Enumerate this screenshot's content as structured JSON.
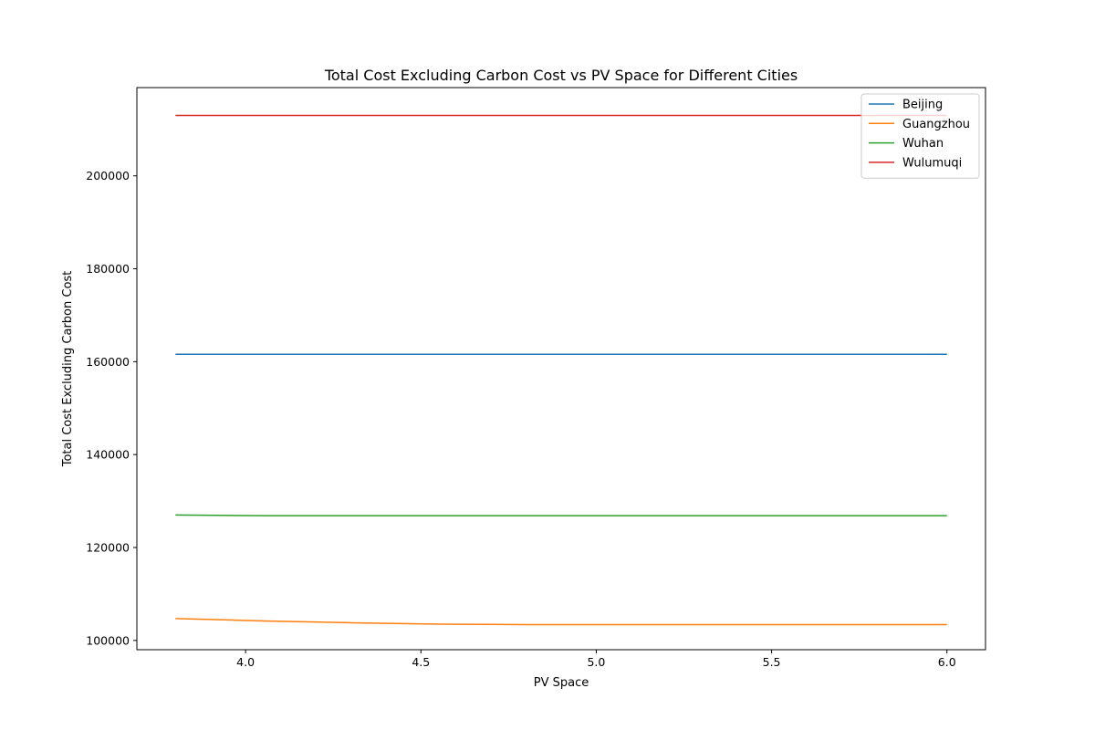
{
  "chart_data": {
    "type": "line",
    "title": "Total Cost Excluding Carbon Cost vs PV Space for Different Cities",
    "xlabel": "PV Space",
    "ylabel": "Total Cost Excluding Carbon Cost",
    "xlim": [
      3.69,
      6.11
    ],
    "ylim": [
      98000,
      219000
    ],
    "xticks": [
      4.0,
      4.5,
      5.0,
      5.5,
      6.0
    ],
    "xtick_labels": [
      "4.0",
      "4.5",
      "5.0",
      "5.5",
      "6.0"
    ],
    "yticks": [
      100000,
      120000,
      140000,
      160000,
      180000,
      200000
    ],
    "ytick_labels": [
      "100000",
      "120000",
      "140000",
      "160000",
      "180000",
      "200000"
    ],
    "grid": false,
    "legend_position": "top-right",
    "series": [
      {
        "name": "Beijing",
        "color": "#1f77b4",
        "x": [
          3.8,
          4.0,
          4.5,
          5.0,
          5.5,
          6.0
        ],
        "values": [
          161600,
          161600,
          161600,
          161600,
          161600,
          161600
        ]
      },
      {
        "name": "Guangzhou",
        "color": "#ff7f0e",
        "x": [
          3.8,
          4.05,
          4.3,
          4.55,
          4.8,
          5.0,
          5.5,
          6.0
        ],
        "values": [
          104700,
          104200,
          103800,
          103500,
          103400,
          103400,
          103400,
          103400
        ]
      },
      {
        "name": "Wuhan",
        "color": "#2ca02c",
        "x": [
          3.8,
          4.05,
          4.5,
          5.0,
          5.5,
          6.0
        ],
        "values": [
          127000,
          126850,
          126850,
          126850,
          126850,
          126850
        ]
      },
      {
        "name": "Wulumuqi",
        "color": "#d62728",
        "x": [
          3.8,
          4.0,
          4.5,
          5.0,
          5.5,
          6.0
        ],
        "values": [
          213000,
          213000,
          213000,
          213000,
          213000,
          213000
        ]
      }
    ]
  }
}
